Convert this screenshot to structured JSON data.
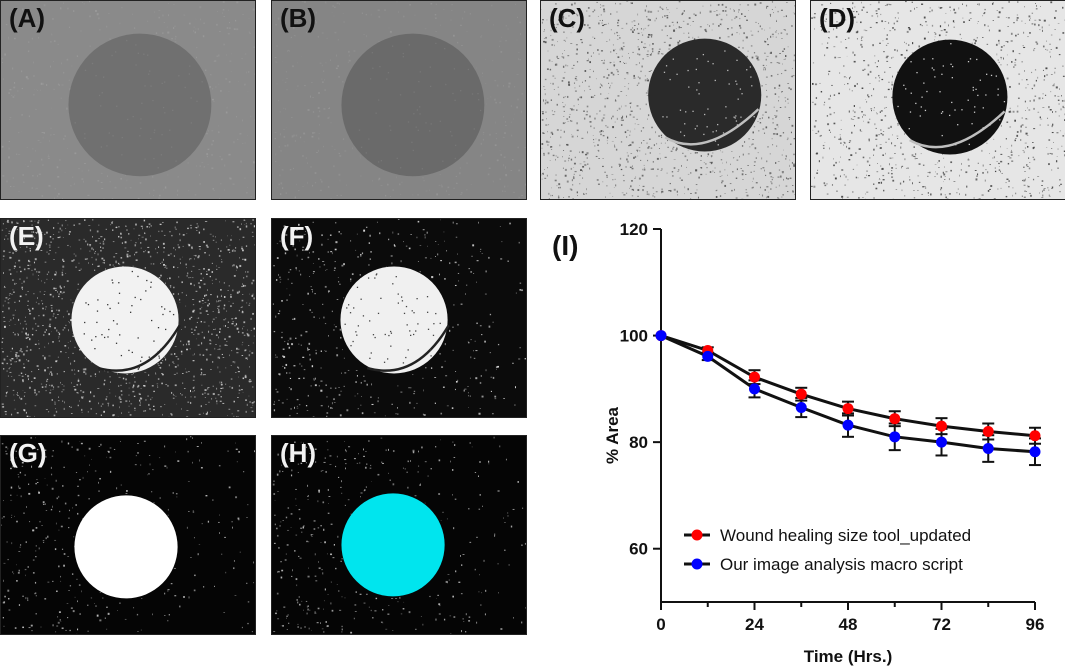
{
  "panels": [
    {
      "id": "A",
      "label": "(A)",
      "style": "gray-orig"
    },
    {
      "id": "B",
      "label": "(B)",
      "style": "gray-mid"
    },
    {
      "id": "C",
      "label": "(C)",
      "style": "contrast"
    },
    {
      "id": "D",
      "label": "(D)",
      "style": "contrast-strong"
    },
    {
      "id": "E",
      "label": "(E)",
      "style": "inverted"
    },
    {
      "id": "F",
      "label": "(F)",
      "style": "inverted-clean"
    },
    {
      "id": "G",
      "label": "(G)",
      "style": "mask"
    },
    {
      "id": "H",
      "label": "(H)",
      "style": "mask-cyan"
    }
  ],
  "colors": {
    "series1": "#ff0000",
    "series2": "#0000ff",
    "mask_highlight": "#00e5ee"
  },
  "chart_data": {
    "type": "line",
    "panel_label": "(I)",
    "xlabel": "Time (Hrs.)",
    "ylabel": "% Area",
    "xlim": [
      0,
      96
    ],
    "ylim": [
      50,
      120
    ],
    "xticks": [
      0,
      24,
      48,
      72,
      96
    ],
    "yticks": [
      60,
      80,
      100,
      120
    ],
    "x": [
      0,
      12,
      24,
      36,
      48,
      60,
      72,
      84,
      96
    ],
    "series": [
      {
        "name": "Wound healing size tool_updated",
        "color": "#ff0000",
        "values": [
          100,
          97.2,
          92.2,
          89,
          86.3,
          84.4,
          83,
          82,
          81.2
        ],
        "errors": [
          0,
          0.6,
          1.3,
          1.2,
          1.3,
          1.4,
          1.5,
          1.5,
          1.5
        ]
      },
      {
        "name": "Our image analysis macro script",
        "color": "#0000ff",
        "values": [
          100,
          96.1,
          90,
          86.5,
          83.2,
          81,
          80,
          78.8,
          78.2
        ],
        "errors": [
          0,
          0.7,
          1.6,
          1.8,
          2.2,
          2.5,
          2.5,
          2.5,
          2.5
        ]
      }
    ],
    "legend_position": "bottom-left",
    "grid": false
  }
}
